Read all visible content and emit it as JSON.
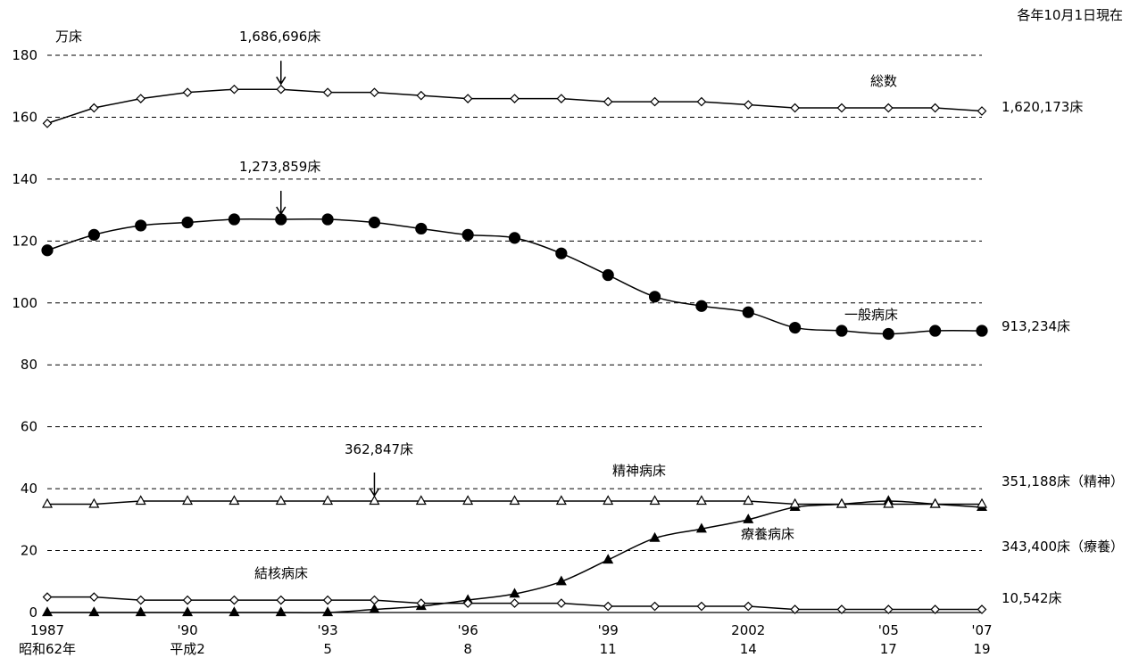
{
  "chart_data": {
    "type": "line",
    "title": "",
    "note": "各年10月1日現在",
    "ylabel": "万床",
    "xlabel": "",
    "ylim": [
      0,
      180
    ],
    "yticks": [
      0,
      20,
      40,
      60,
      80,
      100,
      120,
      140,
      160,
      180
    ],
    "grid": true,
    "x": [
      1987,
      1988,
      1989,
      1990,
      1991,
      1992,
      1993,
      1994,
      1995,
      1996,
      1997,
      1998,
      1999,
      2000,
      2001,
      2002,
      2003,
      2004,
      2005,
      2006,
      2007
    ],
    "xticks": [
      {
        "year": 1987,
        "top": "1987",
        "bottom": "昭和62年"
      },
      {
        "year": 1990,
        "top": "'90",
        "bottom": "平成2"
      },
      {
        "year": 1993,
        "top": "'93",
        "bottom": "5"
      },
      {
        "year": 1996,
        "top": "'96",
        "bottom": "8"
      },
      {
        "year": 1999,
        "top": "'99",
        "bottom": "11"
      },
      {
        "year": 2002,
        "top": "2002",
        "bottom": "14"
      },
      {
        "year": 2005,
        "top": "'05",
        "bottom": "17"
      },
      {
        "year": 2007,
        "top": "'07",
        "bottom": "19"
      }
    ],
    "series": [
      {
        "name": "総数",
        "marker": "open-diamond",
        "values": [
          158,
          163,
          166,
          168,
          169,
          169,
          168,
          168,
          167,
          166,
          166,
          166,
          165,
          165,
          165,
          164,
          163,
          163,
          163,
          163,
          162
        ]
      },
      {
        "name": "一般病床",
        "marker": "filled-circle",
        "values": [
          117,
          122,
          125,
          126,
          127,
          127,
          127,
          126,
          124,
          122,
          121,
          116,
          109,
          102,
          99,
          97,
          92,
          91,
          90,
          91,
          91
        ]
      },
      {
        "name": "精神病床",
        "marker": "open-triangle",
        "values": [
          35,
          35,
          36,
          36,
          36,
          36,
          36,
          36,
          36,
          36,
          36,
          36,
          36,
          36,
          36,
          36,
          35,
          35,
          35,
          35,
          35
        ]
      },
      {
        "name": "療養病床",
        "marker": "filled-triangle",
        "values": [
          0,
          0,
          0,
          0,
          0,
          0,
          0,
          1,
          2,
          4,
          6,
          10,
          17,
          24,
          27,
          30,
          34,
          35,
          36,
          35,
          34
        ]
      },
      {
        "name": "結核病床",
        "marker": "open-diamond",
        "values": [
          5,
          5,
          4,
          4,
          4,
          4,
          4,
          4,
          3,
          3,
          3,
          3,
          2,
          2,
          2,
          2,
          1,
          1,
          1,
          1,
          1
        ]
      }
    ],
    "end_labels": [
      {
        "text": "1,620,173床",
        "value": 162
      },
      {
        "text": "913,234床",
        "value": 91
      },
      {
        "text": "351,188床（精神）",
        "value": 40
      },
      {
        "text": "343,400床（療養）",
        "value": 30
      },
      {
        "text": "10,542床",
        "value": 5
      }
    ],
    "peak_annotations": [
      {
        "text": "1,686,696床",
        "year": 1992,
        "value": 169
      },
      {
        "text": "1,273,859床",
        "year": 1992,
        "value": 127
      },
      {
        "text": "362,847床",
        "year": 1994,
        "value": 36
      }
    ]
  }
}
